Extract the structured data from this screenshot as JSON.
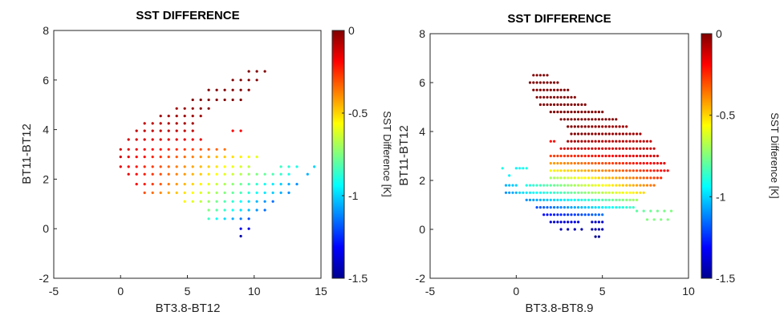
{
  "colormap": {
    "name": "jet",
    "stops": [
      "#00008f",
      "#0000ff",
      "#00ffff",
      "#ffff00",
      "#ff0000",
      "#800000"
    ]
  },
  "chart_data": [
    {
      "type": "scatter",
      "title": "SST DIFFERENCE",
      "xlabel": "BT3.8-BT12",
      "ylabel": "BT11-BT12",
      "xlim": [
        -5,
        15
      ],
      "ylim": [
        -2,
        8
      ],
      "xticks": [
        "-5",
        "0",
        "5",
        "10",
        "15"
      ],
      "yticks": [
        "-2",
        "0",
        "2",
        "4",
        "6",
        "8"
      ],
      "colorbar": {
        "label": "SST Difference [K]",
        "range": [
          -1.5,
          0
        ],
        "ticks": [
          "0",
          "-0.5",
          "-1",
          "-1.5"
        ]
      },
      "grid": false,
      "rows": [
        {
          "y": 6.35,
          "x0": 9.6,
          "x1": 10.8,
          "dx": 0.6,
          "c0": 0,
          "c1": 0
        },
        {
          "y": 6.0,
          "x0": 8.4,
          "x1": 10.2,
          "dx": 0.6,
          "c0": 0,
          "c1": 0
        },
        {
          "y": 5.6,
          "x0": 6.6,
          "x1": 9.6,
          "dx": 0.6,
          "c0": 0,
          "c1": 0
        },
        {
          "y": 5.2,
          "x0": 5.4,
          "x1": 9.0,
          "dx": 0.6,
          "c0": 0,
          "c1": 0
        },
        {
          "y": 4.85,
          "x0": 4.2,
          "x1": 6.6,
          "dx": 0.6,
          "c0": -0.05,
          "c1": 0
        },
        {
          "y": 4.55,
          "x0": 3.0,
          "x1": 6.0,
          "dx": 0.6,
          "c0": -0.05,
          "c1": -0.05
        },
        {
          "y": 4.25,
          "x0": 1.8,
          "x1": 5.4,
          "dx": 0.6,
          "c0": -0.1,
          "c1": -0.05
        },
        {
          "y": 3.95,
          "x0": 1.2,
          "x1": 5.4,
          "dx": 0.6,
          "c0": -0.1,
          "c1": -0.1
        },
        {
          "y": 3.95,
          "x0": 8.4,
          "x1": 9.0,
          "dx": 0.6,
          "c0": -0.18,
          "c1": -0.18
        },
        {
          "y": 3.6,
          "x0": 0.6,
          "x1": 6.0,
          "dx": 0.6,
          "c0": -0.12,
          "c1": -0.15
        },
        {
          "y": 3.2,
          "x0": 0.0,
          "x1": 7.8,
          "dx": 0.6,
          "c0": -0.12,
          "c1": -0.35
        },
        {
          "y": 2.9,
          "x0": 0.0,
          "x1": 10.2,
          "dx": 0.6,
          "c0": -0.12,
          "c1": -0.6
        },
        {
          "y": 2.5,
          "x0": 0.0,
          "x1": 9.6,
          "dx": 0.6,
          "c0": -0.15,
          "c1": -0.65
        },
        {
          "y": 2.5,
          "x0": 12.0,
          "x1": 13.2,
          "dx": 0.6,
          "c0": -0.85,
          "c1": -0.9
        },
        {
          "y": 2.5,
          "x0": 14.5,
          "x1": 14.5,
          "dx": 0.6,
          "c0": -1.0,
          "c1": -1.0
        },
        {
          "y": 2.2,
          "x0": 0.6,
          "x1": 12.6,
          "dx": 0.6,
          "c0": -0.15,
          "c1": -0.9
        },
        {
          "y": 2.2,
          "x0": 14.0,
          "x1": 14.0,
          "dx": 0.6,
          "c0": -1.05,
          "c1": -1.05
        },
        {
          "y": 1.8,
          "x0": 1.2,
          "x1": 13.2,
          "dx": 0.6,
          "c0": -0.18,
          "c1": -1.1
        },
        {
          "y": 1.45,
          "x0": 1.8,
          "x1": 12.6,
          "dx": 0.6,
          "c0": -0.3,
          "c1": -1.1
        },
        {
          "y": 1.1,
          "x0": 4.8,
          "x1": 11.4,
          "dx": 0.6,
          "c0": -0.55,
          "c1": -1.15
        },
        {
          "y": 0.75,
          "x0": 6.6,
          "x1": 10.8,
          "dx": 0.6,
          "c0": -0.75,
          "c1": -1.15
        },
        {
          "y": 0.4,
          "x0": 6.6,
          "x1": 9.6,
          "dx": 0.6,
          "c0": -0.85,
          "c1": -1.2
        },
        {
          "y": 0.0,
          "x0": 9.0,
          "x1": 9.6,
          "dx": 0.6,
          "c0": -1.35,
          "c1": -1.35
        },
        {
          "y": -0.3,
          "x0": 9.0,
          "x1": 9.0,
          "dx": 0.6,
          "c0": -1.45,
          "c1": -1.45
        }
      ]
    },
    {
      "type": "scatter",
      "title": "SST DIFFERENCE",
      "xlabel": "BT3.8-BT8.9",
      "ylabel": "BT11-BT12",
      "xlim": [
        -5,
        10
      ],
      "ylim": [
        -2,
        8
      ],
      "xticks": [
        "-5",
        "0",
        "5",
        "10"
      ],
      "yticks": [
        "-2",
        "0",
        "2",
        "4",
        "6",
        "8"
      ],
      "colorbar": {
        "label": "SST Difference [K]",
        "range": [
          -1.5,
          0
        ],
        "ticks": [
          "0",
          "-0.5",
          "-1",
          "-1.5"
        ]
      },
      "grid": false,
      "rows": [
        {
          "y": 6.3,
          "x0": 1.0,
          "x1": 1.8,
          "dx": 0.2,
          "c0": 0,
          "c1": 0
        },
        {
          "y": 6.0,
          "x0": 0.8,
          "x1": 2.4,
          "dx": 0.2,
          "c0": 0,
          "c1": 0
        },
        {
          "y": 5.7,
          "x0": 1.0,
          "x1": 3.0,
          "dx": 0.2,
          "c0": 0,
          "c1": 0
        },
        {
          "y": 5.4,
          "x0": 1.2,
          "x1": 3.4,
          "dx": 0.2,
          "c0": 0,
          "c1": 0
        },
        {
          "y": 5.1,
          "x0": 1.4,
          "x1": 4.0,
          "dx": 0.2,
          "c0": 0,
          "c1": 0
        },
        {
          "y": 4.8,
          "x0": 2.0,
          "x1": 5.0,
          "dx": 0.2,
          "c0": 0,
          "c1": 0
        },
        {
          "y": 4.5,
          "x0": 2.6,
          "x1": 5.8,
          "dx": 0.2,
          "c0": 0,
          "c1": 0
        },
        {
          "y": 4.2,
          "x0": 3.0,
          "x1": 6.4,
          "dx": 0.2,
          "c0": 0,
          "c1": -0.05
        },
        {
          "y": 3.9,
          "x0": 3.2,
          "x1": 7.2,
          "dx": 0.2,
          "c0": 0,
          "c1": -0.05
        },
        {
          "y": 3.6,
          "x0": 2.0,
          "x1": 2.2,
          "dx": 0.2,
          "c0": -0.2,
          "c1": -0.2
        },
        {
          "y": 3.6,
          "x0": 3.0,
          "x1": 7.8,
          "dx": 0.2,
          "c0": -0.05,
          "c1": -0.1
        },
        {
          "y": 3.3,
          "x0": 2.6,
          "x1": 8.0,
          "dx": 0.2,
          "c0": -0.12,
          "c1": -0.1
        },
        {
          "y": 3.0,
          "x0": 2.0,
          "x1": 8.2,
          "dx": 0.2,
          "c0": -0.28,
          "c1": -0.12
        },
        {
          "y": 2.7,
          "x0": 2.0,
          "x1": 8.6,
          "dx": 0.2,
          "c0": -0.42,
          "c1": -0.15
        },
        {
          "y": 2.4,
          "x0": 2.0,
          "x1": 8.8,
          "dx": 0.2,
          "c0": -0.55,
          "c1": -0.18
        },
        {
          "y": 2.1,
          "x0": 2.0,
          "x1": 8.4,
          "dx": 0.2,
          "c0": -0.7,
          "c1": -0.25
        },
        {
          "y": 1.8,
          "x0": 0.6,
          "x1": 8.0,
          "dx": 0.2,
          "c0": -0.9,
          "c1": -0.35
        },
        {
          "y": 1.5,
          "x0": 0.2,
          "x1": 7.4,
          "dx": 0.2,
          "c0": -1.0,
          "c1": -0.5
        },
        {
          "y": 1.2,
          "x0": 0.6,
          "x1": 7.0,
          "dx": 0.2,
          "c0": -1.1,
          "c1": -0.7
        },
        {
          "y": 0.9,
          "x0": 1.2,
          "x1": 6.8,
          "dx": 0.2,
          "c0": -1.2,
          "c1": -0.85
        },
        {
          "y": 0.6,
          "x0": 1.6,
          "x1": 5.0,
          "dx": 0.2,
          "c0": -1.3,
          "c1": -1.15
        },
        {
          "y": 0.3,
          "x0": 2.0,
          "x1": 3.6,
          "dx": 0.2,
          "c0": -1.4,
          "c1": -1.35
        },
        {
          "y": 0.3,
          "x0": 4.4,
          "x1": 5.0,
          "dx": 0.2,
          "c0": -1.4,
          "c1": -1.4
        },
        {
          "y": 0.0,
          "x0": 2.6,
          "x1": 3.8,
          "dx": 0.4,
          "c0": -1.45,
          "c1": -1.45
        },
        {
          "y": 0.0,
          "x0": 4.4,
          "x1": 5.0,
          "dx": 0.2,
          "c0": -1.45,
          "c1": -1.45
        },
        {
          "y": -0.3,
          "x0": 4.6,
          "x1": 4.8,
          "dx": 0.2,
          "c0": -1.5,
          "c1": -1.5
        },
        {
          "y": 2.5,
          "x0": -0.8,
          "x1": -0.8,
          "dx": 0.2,
          "c0": -0.9,
          "c1": -0.9
        },
        {
          "y": 2.2,
          "x0": -0.4,
          "x1": -0.4,
          "dx": 0.2,
          "c0": -0.95,
          "c1": -0.95
        },
        {
          "y": 1.8,
          "x0": -0.6,
          "x1": 0.0,
          "dx": 0.2,
          "c0": -1.05,
          "c1": -1.0
        },
        {
          "y": 1.5,
          "x0": -0.6,
          "x1": 0.0,
          "dx": 0.2,
          "c0": -1.1,
          "c1": -1.05
        },
        {
          "y": 2.5,
          "x0": 0.0,
          "x1": 0.6,
          "dx": 0.2,
          "c0": -0.95,
          "c1": -0.9
        },
        {
          "y": 0.75,
          "x0": 7.0,
          "x1": 8.8,
          "dx": 0.4,
          "c0": -0.8,
          "c1": -0.75
        },
        {
          "y": 0.4,
          "x0": 7.6,
          "x1": 8.8,
          "dx": 0.4,
          "c0": -0.75,
          "c1": -0.75
        }
      ]
    }
  ]
}
